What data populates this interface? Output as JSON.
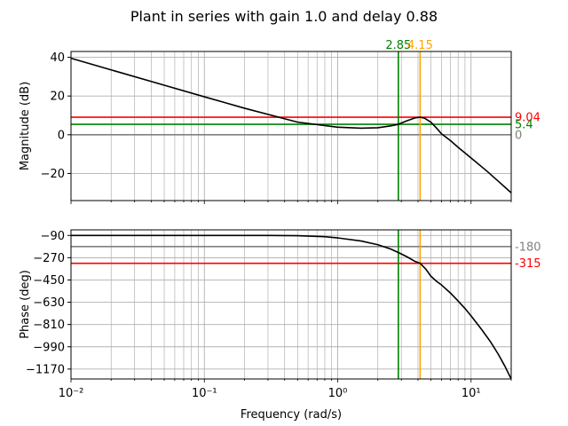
{
  "title": "Plant in series with gain 1.0 and delay 0.88",
  "colors": {
    "curve": "#000000",
    "grid": "#b0b0b0",
    "zero_line": "#808080",
    "green": "#008000",
    "orange": "#ffa500",
    "red": "#ff0000"
  },
  "chart_data": [
    {
      "type": "line",
      "panel": "magnitude",
      "xlabel": "",
      "ylabel": "Magnitude (dB)",
      "xscale": "log",
      "xlim": [
        0.01,
        20
      ],
      "ylim": [
        -34,
        43
      ],
      "yticks": [
        40,
        20,
        0,
        -20
      ],
      "ytick_labels": [
        "40",
        "20",
        "0",
        "−20"
      ],
      "grid": true,
      "series": [
        {
          "x": [
            0.01,
            0.02,
            0.05,
            0.1,
            0.2,
            0.5,
            1.0,
            1.5,
            2.0,
            2.5,
            2.85,
            3.3,
            3.8,
            4.15,
            4.5,
            5.0,
            5.5,
            6.0,
            7.0,
            8.0,
            10.0,
            13.0,
            16.0,
            20.0
          ],
          "y": [
            39.5,
            33.5,
            25.6,
            19.6,
            13.7,
            6.5,
            3.9,
            3.4,
            3.6,
            4.6,
            5.4,
            7.2,
            8.7,
            9.04,
            8.5,
            6.5,
            3.5,
            0.5,
            -3.0,
            -6.5,
            -12.0,
            -18.5,
            -24.0,
            -30.0
          ]
        }
      ],
      "hlines": [
        {
          "y": 9.04,
          "label": "9.04",
          "color": "red"
        },
        {
          "y": 5.4,
          "label": "5.4",
          "color": "green"
        },
        {
          "y": 0,
          "label": "0",
          "color": "zero_line"
        }
      ],
      "vlines": [
        {
          "x": 2.85,
          "label": "2.85",
          "color": "green"
        },
        {
          "x": 4.15,
          "label": "4.15",
          "color": "orange"
        }
      ]
    },
    {
      "type": "line",
      "panel": "phase",
      "xlabel": "Frequency (rad/s)",
      "ylabel": "Phase (deg)",
      "xscale": "log",
      "xlim": [
        0.01,
        20
      ],
      "ylim": [
        -1250,
        -45
      ],
      "yticks": [
        -90,
        -270,
        -450,
        -630,
        -810,
        -990,
        -1170
      ],
      "ytick_labels": [
        "−90",
        "−270",
        "−450",
        "−630",
        "−810",
        "−990",
        "−1170"
      ],
      "xticks": [
        0.01,
        0.1,
        1,
        10
      ],
      "xtick_labels": [
        "10⁻²",
        "10⁻¹",
        "10⁰",
        "10¹"
      ],
      "grid": true,
      "series": [
        {
          "x": [
            0.01,
            0.1,
            0.3,
            0.5,
            0.8,
            1.0,
            1.5,
            2.0,
            2.5,
            2.85,
            3.3,
            3.8,
            4.15,
            4.6,
            5.0,
            5.5,
            6.0,
            7.0,
            8.0,
            9.0,
            10.0,
            12.0,
            14.0,
            16.0,
            18.0,
            20.0
          ],
          "y": [
            -90,
            -90,
            -90,
            -92,
            -100,
            -110,
            -135,
            -165,
            -200,
            -228,
            -262,
            -300,
            -315,
            -365,
            -420,
            -460,
            -490,
            -555,
            -620,
            -680,
            -740,
            -850,
            -950,
            -1050,
            -1150,
            -1250
          ]
        }
      ],
      "hlines": [
        {
          "y": -180,
          "label": "-180",
          "color": "zero_line"
        },
        {
          "y": -315,
          "label": "-315",
          "color": "red"
        }
      ],
      "vlines": [
        {
          "x": 2.85,
          "label": "",
          "color": "green"
        },
        {
          "x": 4.15,
          "label": "",
          "color": "orange"
        }
      ]
    }
  ]
}
